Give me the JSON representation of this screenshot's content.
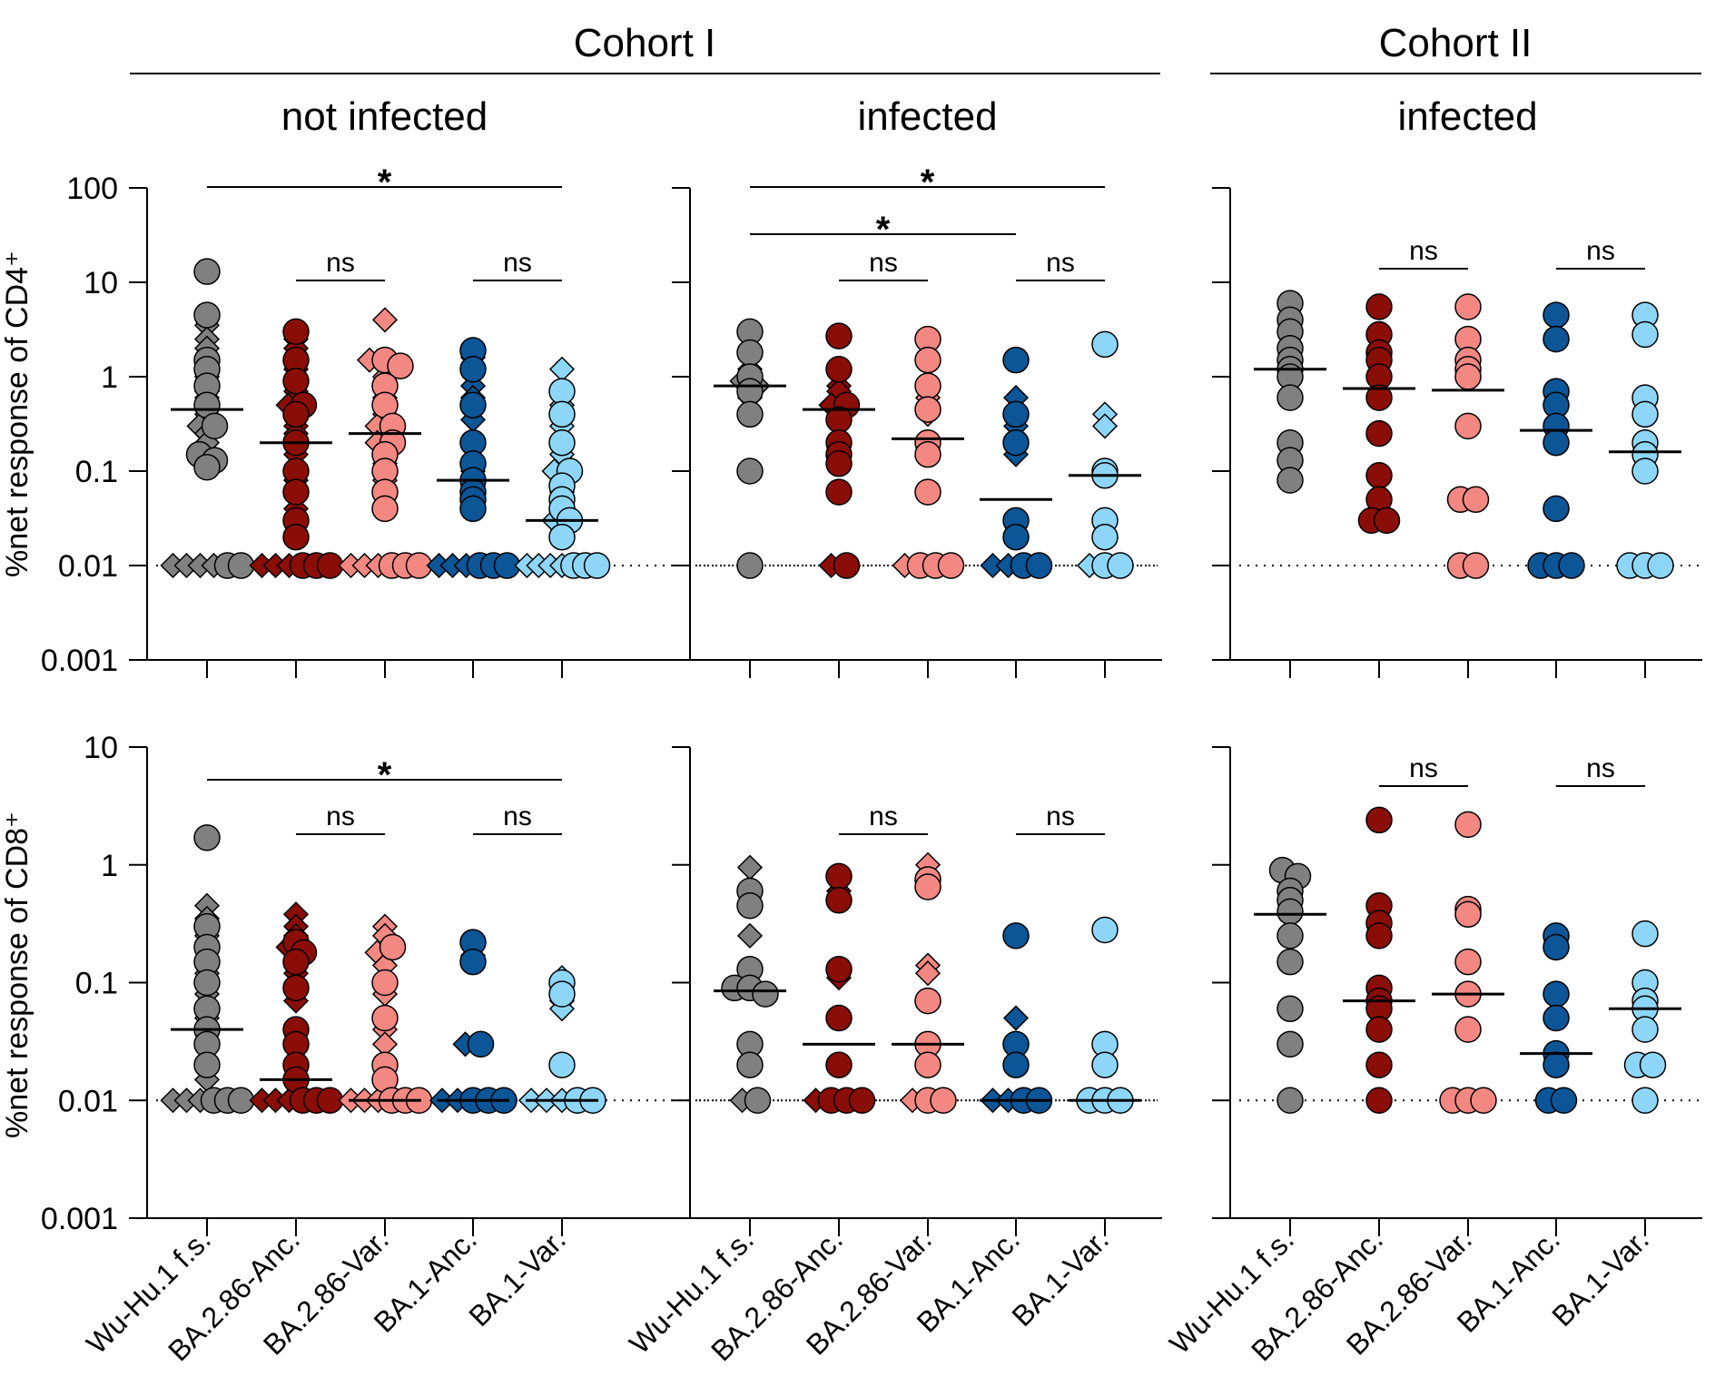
{
  "cohorts": [
    {
      "label": "Cohort I"
    },
    {
      "label": "Cohort II"
    }
  ],
  "row_ylabels": [
    "%net response of CD4⁺",
    "%net response of CD8⁺"
  ],
  "colors": {
    "Wu-Hu.1 f.s.": "#808080",
    "BA.2.86-Anc.": "#8b0d07",
    "BA.2.86-Var.": "#f38883",
    "BA.1-Anc.": "#0c5596",
    "BA.1-Var.": "#8ed6f8"
  },
  "chart_data": [
    {
      "type": "scatter",
      "panel": "CD4 / Cohort I / not infected",
      "title": "not infected",
      "ylabel": "%net response of CD4⁺",
      "yscale": "log",
      "ylim": [
        0.001,
        100
      ],
      "yticks": [
        "0.001",
        "0.01",
        "0.1",
        "1",
        "10",
        "100"
      ],
      "detection_limit": 0.01,
      "categories": [
        "Wu-Hu.1 f.s.",
        "BA.2.86-Anc.",
        "BA.2.86-Var.",
        "BA.1-Anc.",
        "BA.1-Var."
      ],
      "medians": [
        0.45,
        0.2,
        0.25,
        0.08,
        0.03
      ],
      "series": [
        {
          "name": "Wu-Hu.1 f.s.",
          "circles": [
            13,
            4.5,
            1.5,
            1.2,
            0.8,
            0.5,
            0.3,
            0.15,
            0.13,
            0.11,
            0.01,
            0.01
          ],
          "diamonds": [
            3.5,
            2.5,
            2,
            1,
            0.7,
            0.6,
            0.4,
            0.3,
            0.25,
            0.2,
            0.01,
            0.01,
            0.01,
            0.01
          ]
        },
        {
          "name": "BA.2.86-Anc.",
          "circles": [
            3,
            1.5,
            0.9,
            0.5,
            0.4,
            0.2,
            0.1,
            0.06,
            0.03,
            0.02,
            0.01,
            0.01,
            0.01
          ],
          "diamonds": [
            2.5,
            2,
            1.2,
            0.7,
            0.5,
            0.3,
            0.25,
            0.15,
            0.08,
            0.04,
            0.01,
            0.01,
            0.01
          ]
        },
        {
          "name": "BA.2.86-Var.",
          "circles": [
            1.5,
            1.3,
            0.8,
            0.5,
            0.3,
            0.2,
            0.15,
            0.1,
            0.06,
            0.04,
            0.01,
            0.01,
            0.01
          ],
          "diamonds": [
            4,
            1.5,
            1,
            0.6,
            0.4,
            0.3,
            0.2,
            0.12,
            0.08,
            0.01,
            0.01,
            0.01
          ]
        },
        {
          "name": "BA.1-Anc.",
          "circles": [
            1.9,
            1.2,
            0.5,
            0.2,
            0.12,
            0.08,
            0.06,
            0.05,
            0.04,
            0.01,
            0.01,
            0.01
          ],
          "diamonds": [
            1.6,
            0.8,
            0.6,
            0.35,
            0.1,
            0.07,
            0.01,
            0.01,
            0.01
          ]
        },
        {
          "name": "BA.1-Var.",
          "circles": [
            0.7,
            0.4,
            0.2,
            0.1,
            0.07,
            0.05,
            0.04,
            0.03,
            0.02,
            0.01,
            0.01,
            0.01
          ],
          "diamonds": [
            1.2,
            0.5,
            0.3,
            0.15,
            0.1,
            0.06,
            0.03,
            0.01,
            0.01,
            0.01,
            0.01
          ]
        }
      ],
      "annotations": [
        {
          "from": "Wu-Hu.1 f.s.",
          "to": "BA.1-Var.",
          "label": "*"
        },
        {
          "from": "BA.2.86-Anc.",
          "to": "BA.2.86-Var.",
          "label": "ns"
        },
        {
          "from": "BA.1-Anc.",
          "to": "BA.1-Var.",
          "label": "ns"
        }
      ]
    },
    {
      "type": "scatter",
      "panel": "CD4 / Cohort I / infected",
      "title": "infected",
      "ylabel": "%net response of CD4⁺",
      "yscale": "log",
      "ylim": [
        0.001,
        100
      ],
      "detection_limit": 0.01,
      "categories": [
        "Wu-Hu.1 f.s.",
        "BA.2.86-Anc.",
        "BA.2.86-Var.",
        "BA.1-Anc.",
        "BA.1-Var."
      ],
      "medians": [
        0.8,
        0.45,
        0.22,
        0.05,
        0.09
      ],
      "series": [
        {
          "name": "Wu-Hu.1 f.s.",
          "circles": [
            3,
            1.8,
            1,
            0.7,
            0.4,
            0.1,
            0.01
          ],
          "diamonds": [
            1.2,
            0.9,
            0.8,
            0.6
          ]
        },
        {
          "name": "BA.2.86-Anc.",
          "circles": [
            2.7,
            1.2,
            0.5,
            0.35,
            0.2,
            0.15,
            0.12,
            0.06,
            0.01
          ],
          "diamonds": [
            0.8,
            0.7,
            0.5,
            0.01
          ]
        },
        {
          "name": "BA.2.86-Var.",
          "circles": [
            2.5,
            1.5,
            0.8,
            0.45,
            0.2,
            0.15,
            0.06,
            0.01,
            0.01,
            0.01
          ],
          "diamonds": [
            0.6,
            0.4,
            0.01
          ]
        },
        {
          "name": "BA.1-Anc.",
          "circles": [
            1.5,
            0.4,
            0.2,
            0.03,
            0.02,
            0.01,
            0.01
          ],
          "diamonds": [
            0.6,
            0.3,
            0.15,
            0.01,
            0.01
          ]
        },
        {
          "name": "BA.1-Var.",
          "circles": [
            2.2,
            0.1,
            0.09,
            0.03,
            0.02,
            0.01,
            0.01
          ],
          "diamonds": [
            0.4,
            0.3,
            0.01
          ]
        }
      ],
      "annotations": [
        {
          "from": "Wu-Hu.1 f.s.",
          "to": "BA.1-Var.",
          "label": "*"
        },
        {
          "from": "Wu-Hu.1 f.s.",
          "to": "BA.1-Anc.",
          "label": "*"
        },
        {
          "from": "BA.2.86-Anc.",
          "to": "BA.2.86-Var.",
          "label": "ns"
        },
        {
          "from": "BA.1-Anc.",
          "to": "BA.1-Var.",
          "label": "ns"
        }
      ]
    },
    {
      "type": "scatter",
      "panel": "CD4 / Cohort II / infected",
      "title": "infected",
      "ylabel": "%net response of CD4⁺",
      "yscale": "log",
      "ylim": [
        0.001,
        100
      ],
      "detection_limit": 0.01,
      "categories": [
        "Wu-Hu.1 f.s.",
        "BA.2.86-Anc.",
        "BA.2.86-Var.",
        "BA.1-Anc.",
        "BA.1-Var."
      ],
      "medians": [
        1.2,
        0.75,
        0.72,
        0.27,
        0.16
      ],
      "series": [
        {
          "name": "Wu-Hu.1 f.s.",
          "circles": [
            6,
            4,
            3,
            2,
            1.5,
            1.2,
            1,
            0.6,
            0.2,
            0.13,
            0.08
          ],
          "diamonds": []
        },
        {
          "name": "BA.2.86-Anc.",
          "circles": [
            5.5,
            2.8,
            1.8,
            1.5,
            1,
            0.6,
            0.25,
            0.09,
            0.05,
            0.03,
            0.03
          ],
          "diamonds": []
        },
        {
          "name": "BA.2.86-Var.",
          "circles": [
            5.5,
            2.5,
            1.5,
            1.2,
            1,
            0.3,
            0.05,
            0.05,
            0.01,
            0.01
          ],
          "diamonds": []
        },
        {
          "name": "BA.1-Anc.",
          "circles": [
            4.5,
            2.5,
            0.7,
            0.5,
            0.3,
            0.2,
            0.04,
            0.01,
            0.01,
            0.01
          ],
          "diamonds": []
        },
        {
          "name": "BA.1-Var.",
          "circles": [
            4.5,
            2.8,
            0.6,
            0.4,
            0.2,
            0.15,
            0.1,
            0.01,
            0.01,
            0.01
          ],
          "diamonds": []
        }
      ],
      "annotations": [
        {
          "from": "BA.2.86-Anc.",
          "to": "BA.2.86-Var.",
          "label": "ns"
        },
        {
          "from": "BA.1-Anc.",
          "to": "BA.1-Var.",
          "label": "ns"
        }
      ]
    },
    {
      "type": "scatter",
      "panel": "CD8 / Cohort I / not infected",
      "ylabel": "%net response of CD8⁺",
      "yscale": "log",
      "ylim": [
        0.001,
        10
      ],
      "yticks": [
        "0.001",
        "0.01",
        "0.1",
        "1",
        "10"
      ],
      "detection_limit": 0.01,
      "categories": [
        "Wu-Hu.1 f.s.",
        "BA.2.86-Anc.",
        "BA.2.86-Var.",
        "BA.1-Anc.",
        "BA.1-Var."
      ],
      "medians": [
        0.04,
        0.015,
        0.01,
        0.01,
        0.01
      ],
      "series": [
        {
          "name": "Wu-Hu.1 f.s.",
          "circles": [
            1.7,
            0.3,
            0.2,
            0.15,
            0.1,
            0.06,
            0.04,
            0.03,
            0.02,
            0.01,
            0.01,
            0.01
          ],
          "diamonds": [
            0.45,
            0.35,
            0.25,
            0.12,
            0.08,
            0.05,
            0.015,
            0.01,
            0.01,
            0.01
          ]
        },
        {
          "name": "BA.2.86-Anc.",
          "circles": [
            0.22,
            0.18,
            0.15,
            0.09,
            0.04,
            0.03,
            0.02,
            0.015,
            0.01,
            0.01,
            0.01
          ],
          "diamonds": [
            0.38,
            0.3,
            0.25,
            0.2,
            0.12,
            0.07,
            0.01,
            0.01,
            0.01
          ]
        },
        {
          "name": "BA.2.86-Var.",
          "circles": [
            0.2,
            0.1,
            0.05,
            0.02,
            0.015,
            0.01,
            0.01,
            0.01
          ],
          "diamonds": [
            0.3,
            0.25,
            0.18,
            0.14,
            0.08,
            0.04,
            0.03,
            0.01,
            0.01,
            0.01
          ]
        },
        {
          "name": "BA.1-Anc.",
          "circles": [
            0.22,
            0.15,
            0.03,
            0.01,
            0.01,
            0.01
          ],
          "diamonds": [
            0.17,
            0.03,
            0.01,
            0.01
          ]
        },
        {
          "name": "BA.1-Var.",
          "circles": [
            0.1,
            0.08,
            0.02,
            0.01,
            0.01
          ],
          "diamonds": [
            0.11,
            0.07,
            0.06,
            0.01,
            0.01,
            0.01
          ]
        }
      ],
      "annotations": [
        {
          "from": "Wu-Hu.1 f.s.",
          "to": "BA.1-Var.",
          "label": "*"
        },
        {
          "from": "BA.2.86-Anc.",
          "to": "BA.2.86-Var.",
          "label": "ns"
        },
        {
          "from": "BA.1-Anc.",
          "to": "BA.1-Var.",
          "label": "ns"
        }
      ]
    },
    {
      "type": "scatter",
      "panel": "CD8 / Cohort I / infected",
      "ylabel": "%net response of CD8⁺",
      "yscale": "log",
      "ylim": [
        0.001,
        10
      ],
      "detection_limit": 0.01,
      "categories": [
        "Wu-Hu.1 f.s.",
        "BA.2.86-Anc.",
        "BA.2.86-Var.",
        "BA.1-Anc.",
        "BA.1-Var."
      ],
      "medians": [
        0.085,
        0.03,
        0.03,
        0.01,
        0.01
      ],
      "series": [
        {
          "name": "Wu-Hu.1 f.s.",
          "circles": [
            0.6,
            0.45,
            0.13,
            0.09,
            0.09,
            0.08,
            0.03,
            0.02,
            0.01
          ],
          "diamonds": [
            0.95,
            0.25,
            0.01
          ]
        },
        {
          "name": "BA.2.86-Anc.",
          "circles": [
            0.8,
            0.5,
            0.13,
            0.05,
            0.02,
            0.01,
            0.01,
            0.01
          ],
          "diamonds": [
            0.6,
            0.11,
            0.01
          ]
        },
        {
          "name": "BA.2.86-Var.",
          "circles": [
            0.75,
            0.65,
            0.07,
            0.03,
            0.02,
            0.01,
            0.01
          ],
          "diamonds": [
            1,
            0.14,
            0.12,
            0.01
          ]
        },
        {
          "name": "BA.1-Anc.",
          "circles": [
            0.25,
            0.03,
            0.02,
            0.01,
            0.01
          ],
          "diamonds": [
            0.05,
            0.01,
            0.01
          ]
        },
        {
          "name": "BA.1-Var.",
          "circles": [
            0.28,
            0.03,
            0.02,
            0.01,
            0.01,
            0.01
          ],
          "diamonds": []
        }
      ],
      "annotations": [
        {
          "from": "BA.2.86-Anc.",
          "to": "BA.2.86-Var.",
          "label": "ns"
        },
        {
          "from": "BA.1-Anc.",
          "to": "BA.1-Var.",
          "label": "ns"
        }
      ]
    },
    {
      "type": "scatter",
      "panel": "CD8 / Cohort II / infected",
      "ylabel": "%net response of CD8⁺",
      "yscale": "log",
      "ylim": [
        0.001,
        10
      ],
      "detection_limit": 0.01,
      "categories": [
        "Wu-Hu.1 f.s.",
        "BA.2.86-Anc.",
        "BA.2.86-Var.",
        "BA.1-Anc.",
        "BA.1-Var."
      ],
      "medians": [
        0.38,
        0.07,
        0.08,
        0.025,
        0.06
      ],
      "series": [
        {
          "name": "Wu-Hu.1 f.s.",
          "circles": [
            0.9,
            0.8,
            0.6,
            0.5,
            0.4,
            0.25,
            0.15,
            0.06,
            0.03,
            0.01
          ],
          "diamonds": []
        },
        {
          "name": "BA.2.86-Anc.",
          "circles": [
            2.4,
            0.45,
            0.32,
            0.25,
            0.09,
            0.07,
            0.06,
            0.04,
            0.02,
            0.01
          ],
          "diamonds": []
        },
        {
          "name": "BA.2.86-Var.",
          "circles": [
            2.2,
            0.42,
            0.38,
            0.15,
            0.08,
            0.04,
            0.01,
            0.01,
            0.01
          ],
          "diamonds": []
        },
        {
          "name": "BA.1-Anc.",
          "circles": [
            0.25,
            0.2,
            0.08,
            0.05,
            0.025,
            0.02,
            0.01,
            0.01
          ],
          "diamonds": []
        },
        {
          "name": "BA.1-Var.",
          "circles": [
            0.26,
            0.1,
            0.07,
            0.06,
            0.04,
            0.02,
            0.02,
            0.01
          ],
          "diamonds": []
        }
      ],
      "annotations": [
        {
          "from": "BA.2.86-Anc.",
          "to": "BA.2.86-Var.",
          "label": "ns"
        },
        {
          "from": "BA.1-Anc.",
          "to": "BA.1-Var.",
          "label": "ns"
        }
      ]
    }
  ]
}
